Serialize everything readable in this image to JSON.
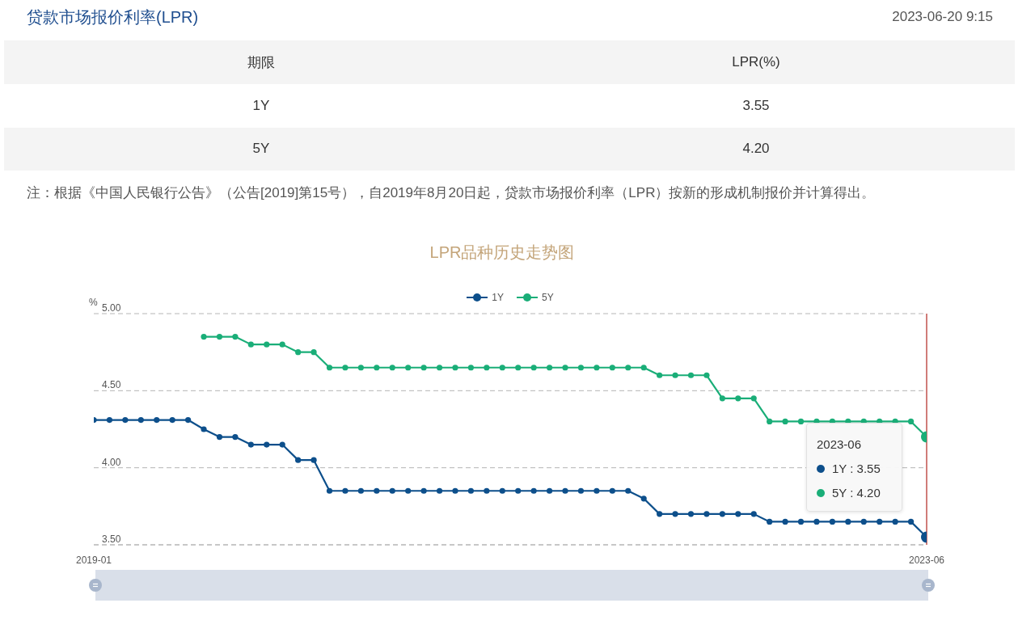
{
  "chart_data": [
    {
      "type": "other",
      "title": "贷款市场报价利率(LPR)",
      "subtitle": "2023-06-20 9:15",
      "xlabel": "期限",
      "ylabel": "LPR(%)",
      "categories": [
        "1Y",
        "5Y"
      ],
      "values": [
        3.55,
        4.2
      ],
      "value_labels": [
        "3.55",
        "4.20"
      ],
      "annotations": [
        "注：根据《中国人民银行公告》（公告[2019]第15号），自2019年8月20日起，贷款市场报价利率（LPR）按新的形成机制报价并计算得出。"
      ]
    },
    {
      "type": "line",
      "title": "LPR品种历史走势图",
      "ylabel": "%",
      "x": [
        "2019-01",
        "2019-02",
        "2019-03",
        "2019-04",
        "2019-05",
        "2019-06",
        "2019-07",
        "2019-08",
        "2019-09",
        "2019-10",
        "2019-11",
        "2019-12",
        "2020-01",
        "2020-02",
        "2020-03",
        "2020-04",
        "2020-05",
        "2020-06",
        "2020-07",
        "2020-08",
        "2020-09",
        "2020-10",
        "2020-11",
        "2020-12",
        "2021-01",
        "2021-02",
        "2021-03",
        "2021-04",
        "2021-05",
        "2021-06",
        "2021-07",
        "2021-08",
        "2021-09",
        "2021-10",
        "2021-11",
        "2021-12",
        "2022-01",
        "2022-02",
        "2022-03",
        "2022-04",
        "2022-05",
        "2022-06",
        "2022-07",
        "2022-08",
        "2022-09",
        "2022-10",
        "2022-11",
        "2022-12",
        "2023-01",
        "2023-02",
        "2023-03",
        "2023-04",
        "2023-05",
        "2023-06"
      ],
      "series": [
        {
          "name": "1Y",
          "color": "#0d4f8b",
          "values": [
            4.31,
            4.31,
            4.31,
            4.31,
            4.31,
            4.31,
            4.31,
            4.25,
            4.2,
            4.2,
            4.15,
            4.15,
            4.15,
            4.05,
            4.05,
            3.85,
            3.85,
            3.85,
            3.85,
            3.85,
            3.85,
            3.85,
            3.85,
            3.85,
            3.85,
            3.85,
            3.85,
            3.85,
            3.85,
            3.85,
            3.85,
            3.85,
            3.85,
            3.85,
            3.85,
            3.8,
            3.7,
            3.7,
            3.7,
            3.7,
            3.7,
            3.7,
            3.7,
            3.65,
            3.65,
            3.65,
            3.65,
            3.65,
            3.65,
            3.65,
            3.65,
            3.65,
            3.65,
            3.55
          ]
        },
        {
          "name": "5Y",
          "color": "#1aae78",
          "values": [
            null,
            null,
            null,
            null,
            null,
            null,
            null,
            4.85,
            4.85,
            4.85,
            4.8,
            4.8,
            4.8,
            4.75,
            4.75,
            4.65,
            4.65,
            4.65,
            4.65,
            4.65,
            4.65,
            4.65,
            4.65,
            4.65,
            4.65,
            4.65,
            4.65,
            4.65,
            4.65,
            4.65,
            4.65,
            4.65,
            4.65,
            4.65,
            4.65,
            4.65,
            4.6,
            4.6,
            4.6,
            4.6,
            4.45,
            4.45,
            4.45,
            4.3,
            4.3,
            4.3,
            4.3,
            4.3,
            4.3,
            4.3,
            4.3,
            4.3,
            4.3,
            4.2
          ]
        }
      ],
      "xlim": [
        "2019-01",
        "2023-06"
      ],
      "xticks": [
        "2019-01",
        "2023-06"
      ],
      "ylim": [
        3.5,
        5
      ],
      "yticks": [
        {
          "value": 3.5,
          "label": "3.50"
        },
        {
          "value": 4,
          "label": "4.00"
        },
        {
          "value": 4.5,
          "label": "4.50"
        },
        {
          "value": 5,
          "label": "5.00"
        }
      ],
      "grid": "y",
      "legend": "top",
      "marker": "circle",
      "ref_lines": [
        {
          "axis": "x",
          "value": "2023-06",
          "color": "#c0504d"
        }
      ],
      "annotations": [
        "2023-06",
        "1Y : 3.55",
        "5Y : 4.20"
      ]
    }
  ]
}
